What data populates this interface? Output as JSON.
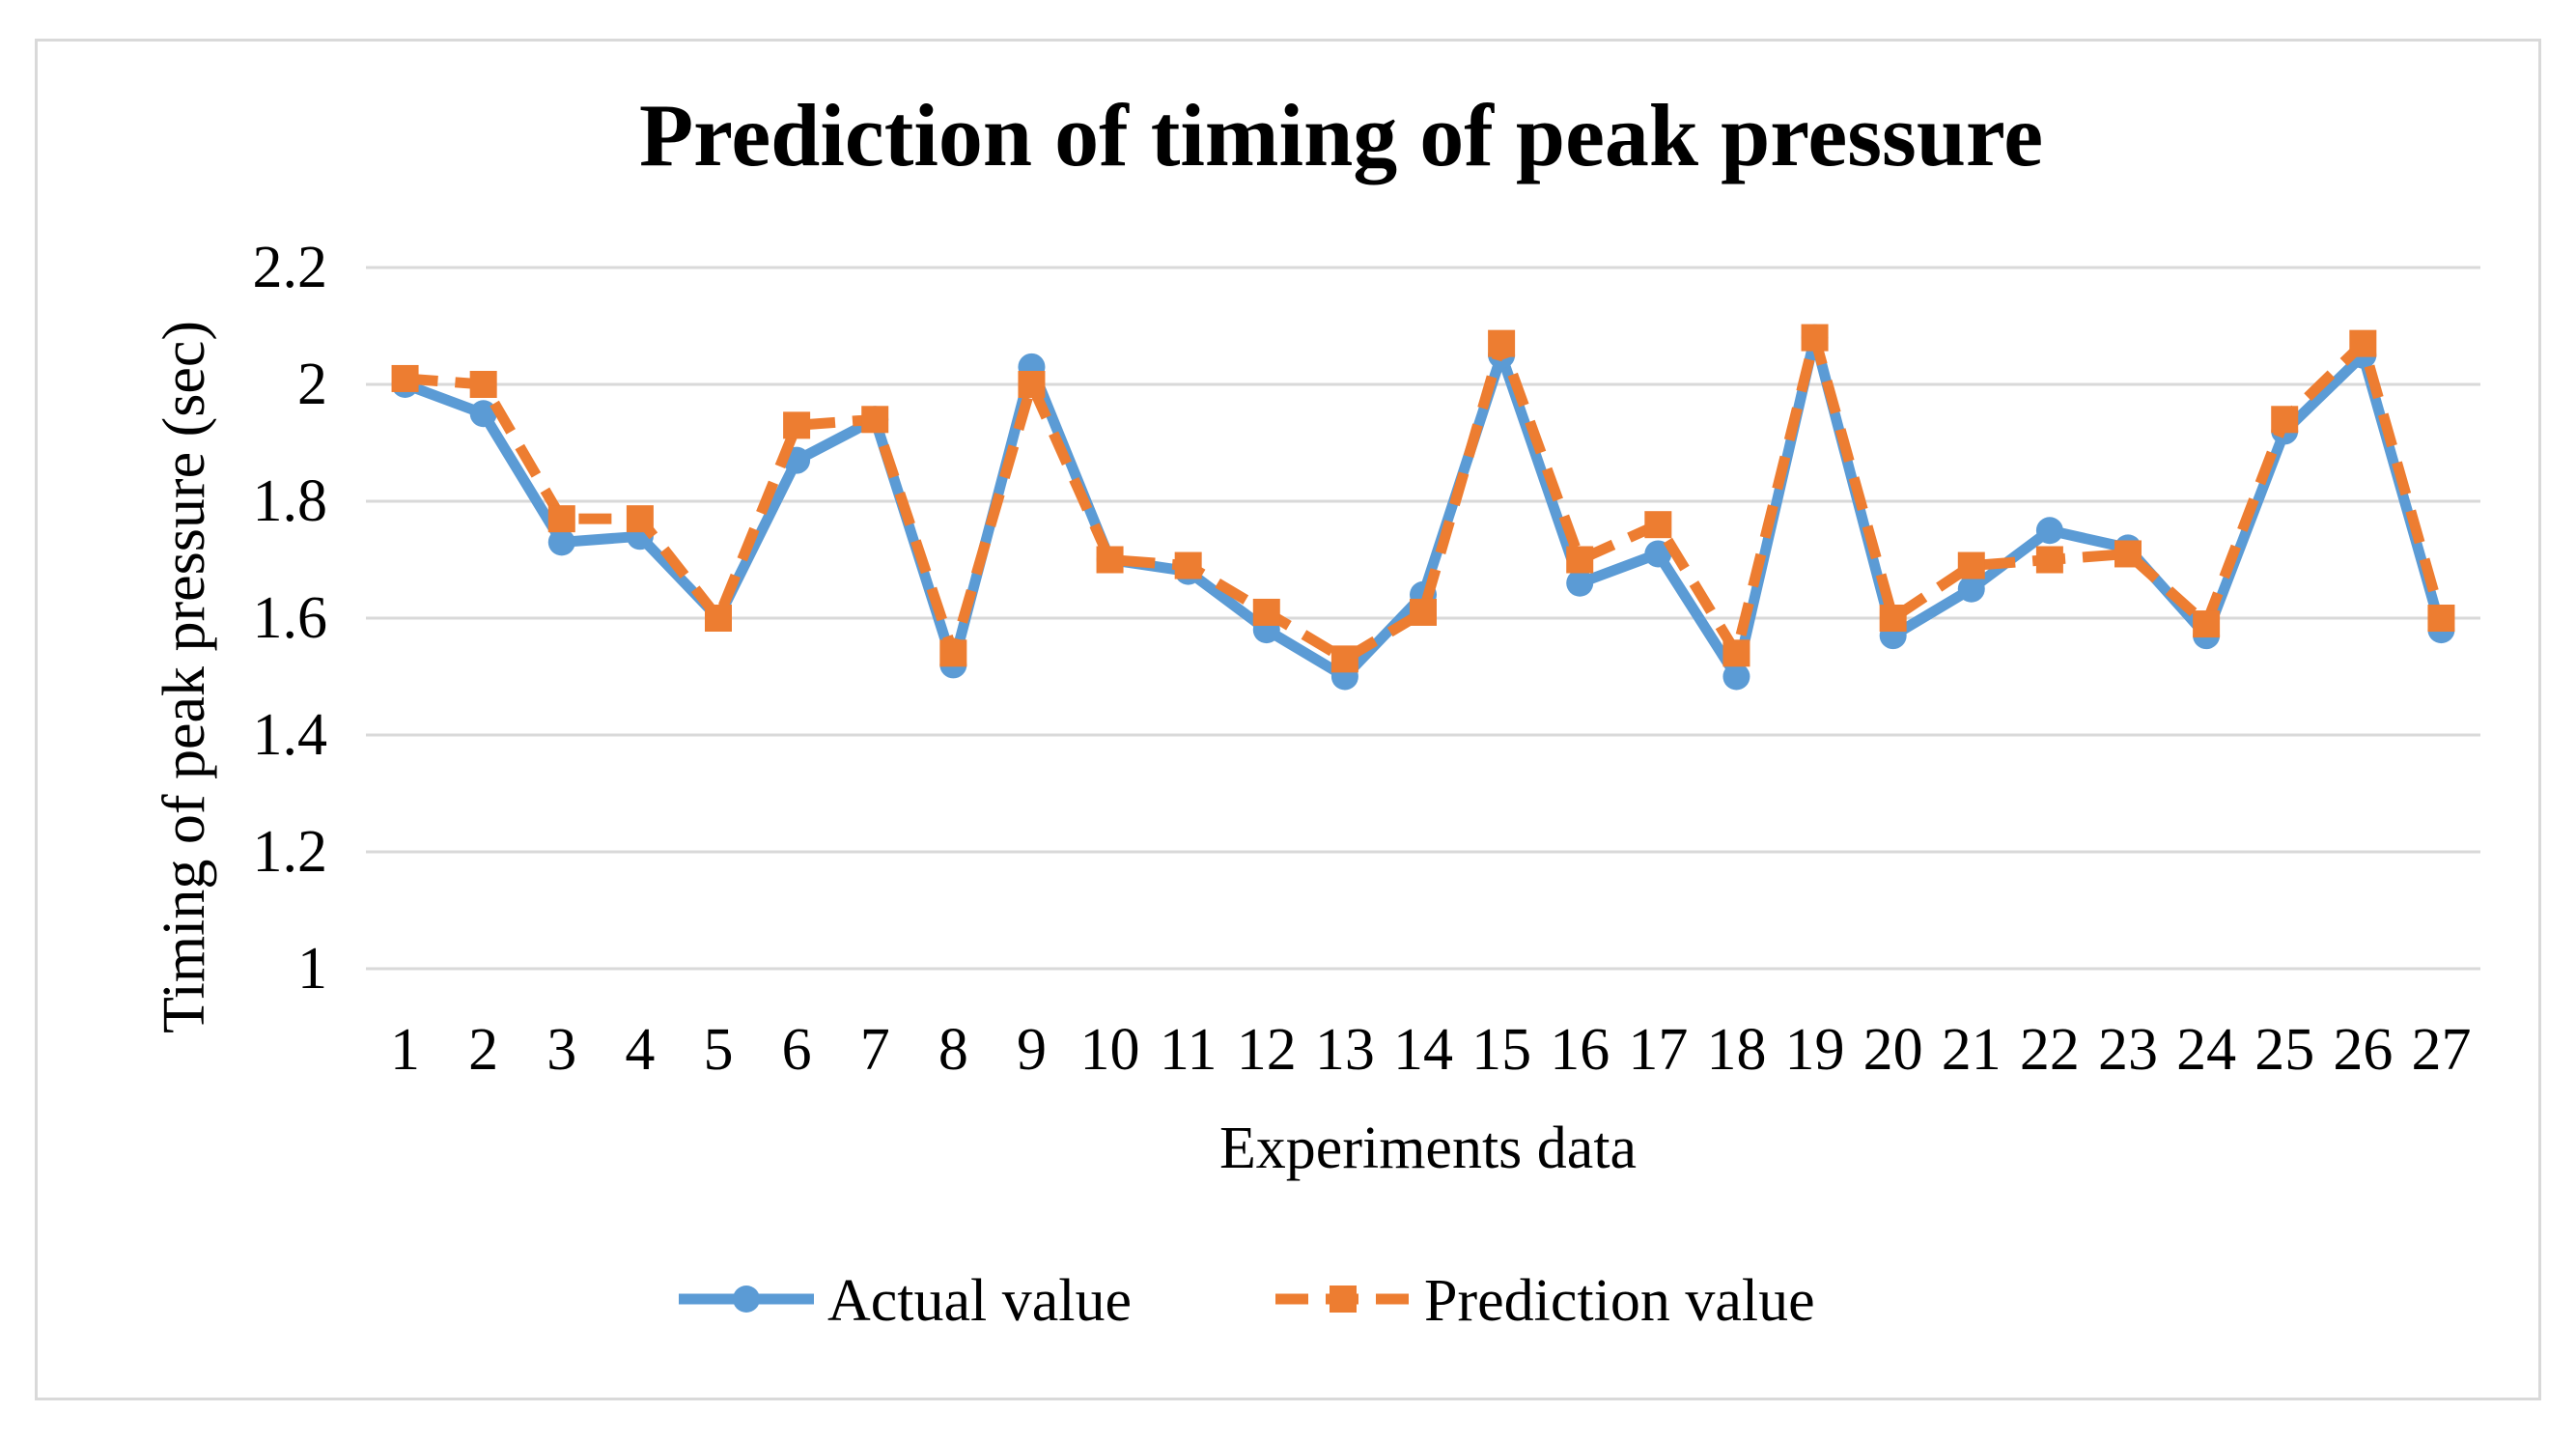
{
  "chart_data": {
    "type": "line",
    "title": "Prediction of timing of peak pressure",
    "xlabel": "Experiments  data",
    "ylabel": "Timing of peak pressure  (sec)",
    "ylim": [
      1,
      2.2
    ],
    "yticks": [
      "1",
      "1.2",
      "1.4",
      "1.6",
      "1.8",
      "2",
      "2.2"
    ],
    "yticks_values": [
      1,
      1.2,
      1.4,
      1.6,
      1.8,
      2,
      2.2
    ],
    "grid": true,
    "legend_position": "bottom",
    "categories": [
      "1",
      "2",
      "3",
      "4",
      "5",
      "6",
      "7",
      "8",
      "9",
      "10",
      "11",
      "12",
      "13",
      "14",
      "15",
      "16",
      "17",
      "18",
      "19",
      "20",
      "21",
      "22",
      "23",
      "24",
      "25",
      "26",
      "27"
    ],
    "series": [
      {
        "name": "Actual value",
        "color": "#5b9bd5",
        "marker": "circle",
        "dash": "solid",
        "values": [
          2.0,
          1.95,
          1.73,
          1.74,
          1.6,
          1.87,
          1.94,
          1.52,
          2.03,
          1.7,
          1.68,
          1.58,
          1.5,
          1.64,
          2.05,
          1.66,
          1.71,
          1.5,
          2.08,
          1.57,
          1.65,
          1.75,
          1.72,
          1.57,
          1.92,
          2.05,
          1.58
        ]
      },
      {
        "name": "Prediction value",
        "color": "#ed7d31",
        "marker": "square",
        "dash": "dashed",
        "values": [
          2.01,
          2.0,
          1.77,
          1.77,
          1.6,
          1.93,
          1.94,
          1.54,
          2.0,
          1.7,
          1.69,
          1.61,
          1.53,
          1.61,
          2.07,
          1.7,
          1.76,
          1.54,
          2.08,
          1.6,
          1.69,
          1.7,
          1.71,
          1.59,
          1.94,
          2.07,
          1.6
        ]
      }
    ]
  }
}
